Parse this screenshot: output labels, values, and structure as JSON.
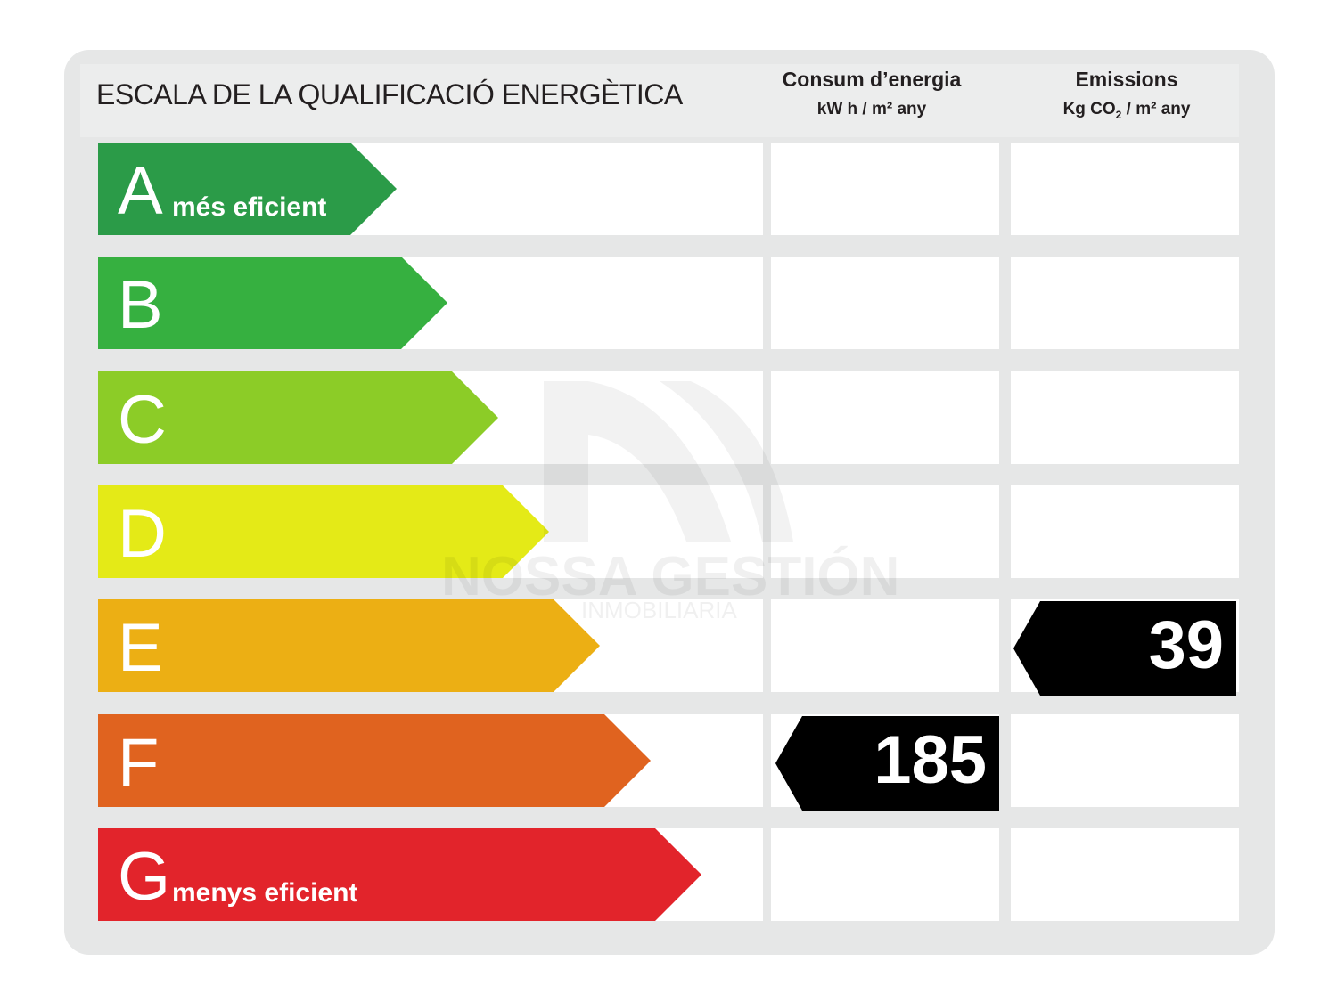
{
  "title": "ESCALA DE LA QUALIFICACIÓ ENERGÈTICA",
  "columns": {
    "energy": {
      "title": "Consum d’energia",
      "unit": "kW h / m² any"
    },
    "emissions": {
      "title": "Emissions",
      "unit_prefix": "Kg CO",
      "unit_sub": "2",
      "unit_suffix": " / m² any"
    }
  },
  "ratings": [
    {
      "letter": "A",
      "label": "més eficient",
      "color": "#2b9b48"
    },
    {
      "letter": "B",
      "label": "",
      "color": "#36b040"
    },
    {
      "letter": "C",
      "label": "",
      "color": "#8ccc27"
    },
    {
      "letter": "D",
      "label": "",
      "color": "#e4ea17"
    },
    {
      "letter": "E",
      "label": "",
      "color": "#ecaf14"
    },
    {
      "letter": "F",
      "label": "",
      "color": "#e0631f"
    },
    {
      "letter": "G",
      "label": "menys eficient",
      "color": "#e2242b"
    }
  ],
  "energy_value": {
    "value": "185",
    "rating": "F"
  },
  "emissions_value": {
    "value": "39",
    "rating": "E"
  },
  "watermark": {
    "name": "NOSSA GESTIÓN",
    "tagline": "INMOBILIARIA"
  }
}
